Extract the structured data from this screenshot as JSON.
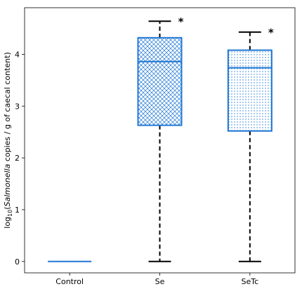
{
  "chart_data": {
    "type": "box",
    "categories": [
      "Control",
      "Se",
      "SeTc"
    ],
    "ylabel": {
      "prefix": "log",
      "subscript": "10",
      "open": "(",
      "italic": "Salmonella",
      "suffix": " copies / g of caecal content)"
    },
    "ylim": [
      -0.22,
      4.9
    ],
    "yticks": [
      0,
      1,
      2,
      3,
      4
    ],
    "grid": false,
    "box_color": "#1f77d4",
    "whisker_color": "#000000",
    "boxes": [
      {
        "category": "Control",
        "whislo": 0,
        "q1": 0,
        "median": 0,
        "q3": 0,
        "whishi": 0,
        "hatch": "none",
        "annotation": ""
      },
      {
        "category": "Se",
        "whislo": 0,
        "q1": 2.63,
        "median": 3.86,
        "q3": 4.32,
        "whishi": 4.64,
        "hatch": "crosshatch",
        "annotation": "*"
      },
      {
        "category": "SeTc",
        "whislo": 0,
        "q1": 2.52,
        "median": 3.74,
        "q3": 4.08,
        "whishi": 4.43,
        "hatch": "dots",
        "annotation": "*"
      }
    ]
  }
}
